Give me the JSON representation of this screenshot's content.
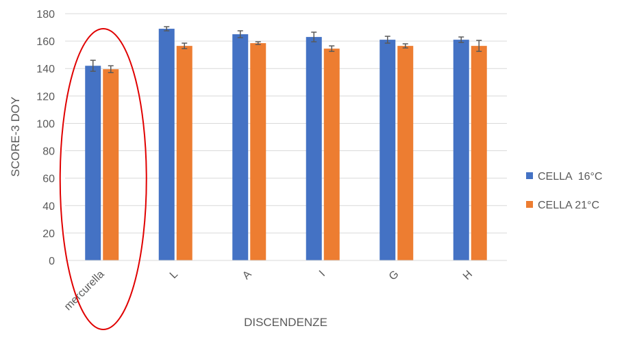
{
  "chart_data": {
    "type": "bar",
    "title": "",
    "xlabel": "DISCENDENZE",
    "ylabel": "SCORE-3 DOY",
    "ylim": [
      0,
      180
    ],
    "yticks": [
      0,
      20,
      40,
      60,
      80,
      100,
      120,
      140,
      160,
      180
    ],
    "grid": true,
    "legend_position": "right",
    "categories": [
      "mercurella",
      "L",
      "A",
      "I",
      "G",
      "H"
    ],
    "series": [
      {
        "name": "CELLA  16°C",
        "color": "#4472C4",
        "values": [
          142,
          169,
          165,
          163,
          161,
          161
        ],
        "errors": [
          4,
          1.5,
          2.5,
          3.5,
          2.5,
          2
        ]
      },
      {
        "name": "CELLA 21°C",
        "color": "#ED7D31",
        "values": [
          139.5,
          156.5,
          158.5,
          154.5,
          156.5,
          156.5
        ],
        "errors": [
          2.5,
          2,
          1,
          2,
          1.5,
          4
        ]
      }
    ],
    "annotations": [
      {
        "type": "ellipse",
        "target_category": "mercurella",
        "color": "#E00000"
      }
    ]
  }
}
